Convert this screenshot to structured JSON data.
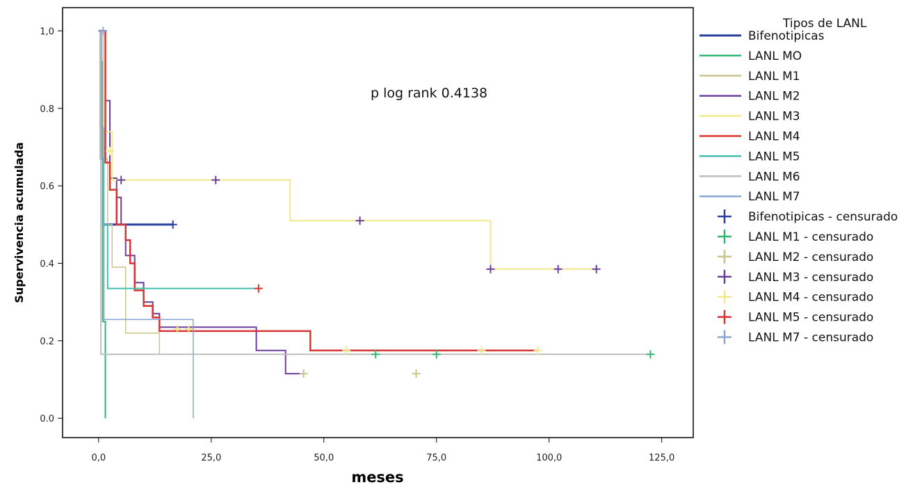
{
  "chart_data": {
    "type": "line",
    "title": "",
    "xlabel": "meses",
    "ylabel": "Supervivencia acumulada",
    "xlim": [
      -8,
      132
    ],
    "ylim": [
      -0.05,
      1.06
    ],
    "x_ticks": [
      0,
      25,
      50,
      75,
      100,
      125
    ],
    "x_tick_labels": [
      "0,0",
      "25,0",
      "50,0",
      "75,0",
      "100,0",
      "125,0"
    ],
    "y_ticks": [
      0,
      0.2,
      0.4,
      0.6,
      0.8,
      1.0
    ],
    "y_tick_labels": [
      "0.0",
      "0.2",
      "0.4",
      "0.6",
      "0.8",
      "1,0"
    ],
    "grid": false,
    "legend_position": "right",
    "legend_title": "Tipos de LANL",
    "annotation": "p log rank 0.4138",
    "series": [
      {
        "name": "Bifenotipicas",
        "color": "#2a3f9d",
        "width": 3,
        "x": [
          0,
          0.5,
          0.5,
          1,
          1,
          16.5
        ],
        "y": [
          1.0,
          1.0,
          0.67,
          0.67,
          0.5,
          0.5
        ]
      },
      {
        "name": "LANL MO",
        "color": "#2fb872",
        "width": 2,
        "x": [
          0,
          0.4,
          0.4,
          0.9,
          0.9,
          1.5,
          1.5
        ],
        "y": [
          1.0,
          1.0,
          0.92,
          0.92,
          0.25,
          0.25,
          0.0
        ]
      },
      {
        "name": "LANL M1",
        "color": "#c9c48a",
        "width": 1.5,
        "x": [
          0,
          1,
          1,
          2,
          2,
          3,
          3,
          6,
          6,
          13.5,
          13.5,
          70.5
        ],
        "y": [
          1.0,
          1.0,
          0.67,
          0.67,
          0.5,
          0.5,
          0.39,
          0.39,
          0.22,
          0.22,
          0.165,
          0.165
        ]
      },
      {
        "name": "LANL M2",
        "color": "#6a3e9a",
        "width": 2,
        "x": [
          0,
          1.5,
          1.5,
          2.5,
          2.5,
          4,
          4,
          5,
          5,
          6,
          6,
          8,
          8,
          10,
          10,
          12,
          12,
          13.5,
          13.5,
          35,
          35,
          41.5,
          41.5,
          45.5
        ],
        "y": [
          1.0,
          1.0,
          0.82,
          0.82,
          0.62,
          0.62,
          0.57,
          0.57,
          0.5,
          0.5,
          0.42,
          0.42,
          0.35,
          0.35,
          0.3,
          0.3,
          0.27,
          0.27,
          0.235,
          0.235,
          0.175,
          0.175,
          0.115,
          0.115
        ]
      },
      {
        "name": "LANL M3",
        "color": "#f2e98a",
        "width": 2,
        "x": [
          0,
          1.5,
          1.5,
          3,
          3,
          42.5,
          42.5,
          87,
          87,
          110.5
        ],
        "y": [
          1.0,
          1.0,
          0.74,
          0.74,
          0.615,
          0.615,
          0.51,
          0.51,
          0.385,
          0.385
        ]
      },
      {
        "name": "LANL M4",
        "color": "#d63333",
        "width": 2.5,
        "x": [
          0,
          1.5,
          1.5,
          2.5,
          2.5,
          4,
          4,
          6,
          6,
          7,
          7,
          8,
          8,
          10,
          10,
          12,
          12,
          13.5,
          13.5,
          47,
          47,
          97.5
        ],
        "y": [
          1.0,
          1.0,
          0.66,
          0.66,
          0.59,
          0.59,
          0.5,
          0.5,
          0.46,
          0.46,
          0.4,
          0.4,
          0.33,
          0.33,
          0.29,
          0.29,
          0.26,
          0.26,
          0.225,
          0.225,
          0.175,
          0.175
        ]
      },
      {
        "name": "LANL M5",
        "color": "#3fbfae",
        "width": 2,
        "x": [
          0,
          0.5,
          0.5,
          1,
          1,
          2,
          2,
          35.5
        ],
        "y": [
          1.0,
          1.0,
          0.67,
          0.67,
          0.5,
          0.5,
          0.335,
          0.335
        ]
      },
      {
        "name": "LANL M6",
        "color": "#bdbdbd",
        "width": 2,
        "x": [
          0,
          0.5,
          0.5,
          123
        ],
        "y": [
          1.0,
          1.0,
          0.165,
          0.165
        ]
      },
      {
        "name": "LANL M7",
        "color": "#8aa6d6",
        "width": 1.5,
        "x": [
          0,
          0.6,
          0.6,
          1.2,
          1.2,
          21,
          21
        ],
        "y": [
          1.0,
          1.0,
          0.75,
          0.75,
          0.255,
          0.255,
          0.0
        ]
      }
    ],
    "censored": [
      {
        "name": "Bifenotipicas - censurado",
        "color": "#2a3f9d",
        "x": [
          16.5
        ],
        "y": [
          0.5
        ]
      },
      {
        "name": "LANL M1 - censurado",
        "color": "#2fb872",
        "x": [
          61.5,
          75,
          122.5
        ],
        "y": [
          0.165,
          0.165,
          0.165
        ]
      },
      {
        "name": "LANL M2 - censurado",
        "color": "#c9c48a",
        "x": [
          45.5,
          70.5
        ],
        "y": [
          0.115,
          0.115
        ]
      },
      {
        "name": "LANL M3 - censurado",
        "color": "#6a3e9a",
        "x": [
          5,
          26,
          58,
          87,
          102,
          110.5
        ],
        "y": [
          0.615,
          0.615,
          0.51,
          0.385,
          0.385,
          0.385
        ]
      },
      {
        "name": "LANL M4 - censurado",
        "color": "#f2e98a",
        "x": [
          2.5,
          17.5,
          20,
          55,
          85,
          97.5
        ],
        "y": [
          0.69,
          0.23,
          0.23,
          0.175,
          0.175,
          0.175
        ]
      },
      {
        "name": "LANL M5 - censurado",
        "color": "#d63333",
        "x": [
          35.5
        ],
        "y": [
          0.335
        ]
      },
      {
        "name": "LANL M7 - censurado",
        "color": "#8aa6d6",
        "x": [
          1.0
        ],
        "y": [
          1.0
        ]
      }
    ]
  }
}
